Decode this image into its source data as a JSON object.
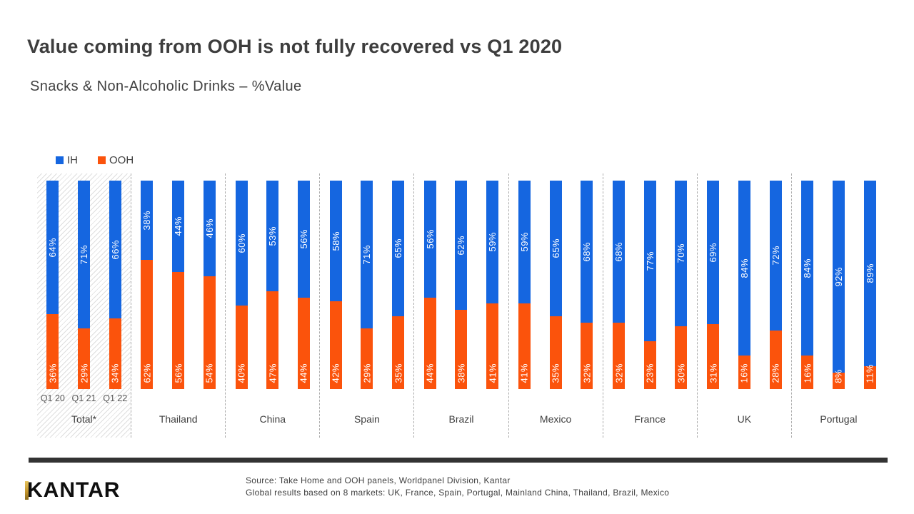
{
  "header": {
    "title": "Value coming from OOH is not fully recovered vs Q1 2020",
    "subtitle": "Snacks & Non-Alcoholic Drinks – %Value"
  },
  "chart_data": {
    "type": "bar",
    "stacked": true,
    "unit": "%",
    "ylim": [
      0,
      100
    ],
    "grid": false,
    "legend_position": "top-left",
    "series_names": [
      "IH",
      "OOH"
    ],
    "colors": {
      "IH": "#1566E0",
      "OOH": "#FB530C"
    },
    "bar_labels": [
      "Q1 20",
      "Q1 21",
      "Q1 22"
    ],
    "groups": [
      {
        "label": "Total*",
        "highlighted": true,
        "show_bar_labels": true,
        "IH": [
          64,
          71,
          66
        ],
        "OOH": [
          36,
          29,
          34
        ]
      },
      {
        "label": "Thailand",
        "highlighted": false,
        "show_bar_labels": false,
        "IH": [
          38,
          44,
          46
        ],
        "OOH": [
          62,
          56,
          54
        ]
      },
      {
        "label": "China",
        "highlighted": false,
        "show_bar_labels": false,
        "IH": [
          60,
          53,
          56
        ],
        "OOH": [
          40,
          47,
          44
        ]
      },
      {
        "label": "Spain",
        "highlighted": false,
        "show_bar_labels": false,
        "IH": [
          58,
          71,
          65
        ],
        "OOH": [
          42,
          29,
          35
        ]
      },
      {
        "label": "Brazil",
        "highlighted": false,
        "show_bar_labels": false,
        "IH": [
          56,
          62,
          59
        ],
        "OOH": [
          44,
          38,
          41
        ]
      },
      {
        "label": "Mexico",
        "highlighted": false,
        "show_bar_labels": false,
        "IH": [
          59,
          65,
          68
        ],
        "OOH": [
          41,
          35,
          32
        ]
      },
      {
        "label": "France",
        "highlighted": false,
        "show_bar_labels": false,
        "IH": [
          68,
          77,
          70
        ],
        "OOH": [
          32,
          23,
          30
        ]
      },
      {
        "label": "UK",
        "highlighted": false,
        "show_bar_labels": false,
        "IH": [
          69,
          84,
          72
        ],
        "OOH": [
          31,
          16,
          28
        ]
      },
      {
        "label": "Portugal",
        "highlighted": false,
        "show_bar_labels": false,
        "IH": [
          84,
          92,
          89
        ],
        "OOH": [
          16,
          8,
          11
        ]
      }
    ]
  },
  "footer": {
    "logo": "KANTAR",
    "source_line1": "Source: Take Home and OOH panels,  Worldpanel Division,  Kantar",
    "source_line2": "Global results based on 8 markets: UK, France, Spain, Portugal, Mainland China, Thailand, Brazil, Mexico"
  }
}
